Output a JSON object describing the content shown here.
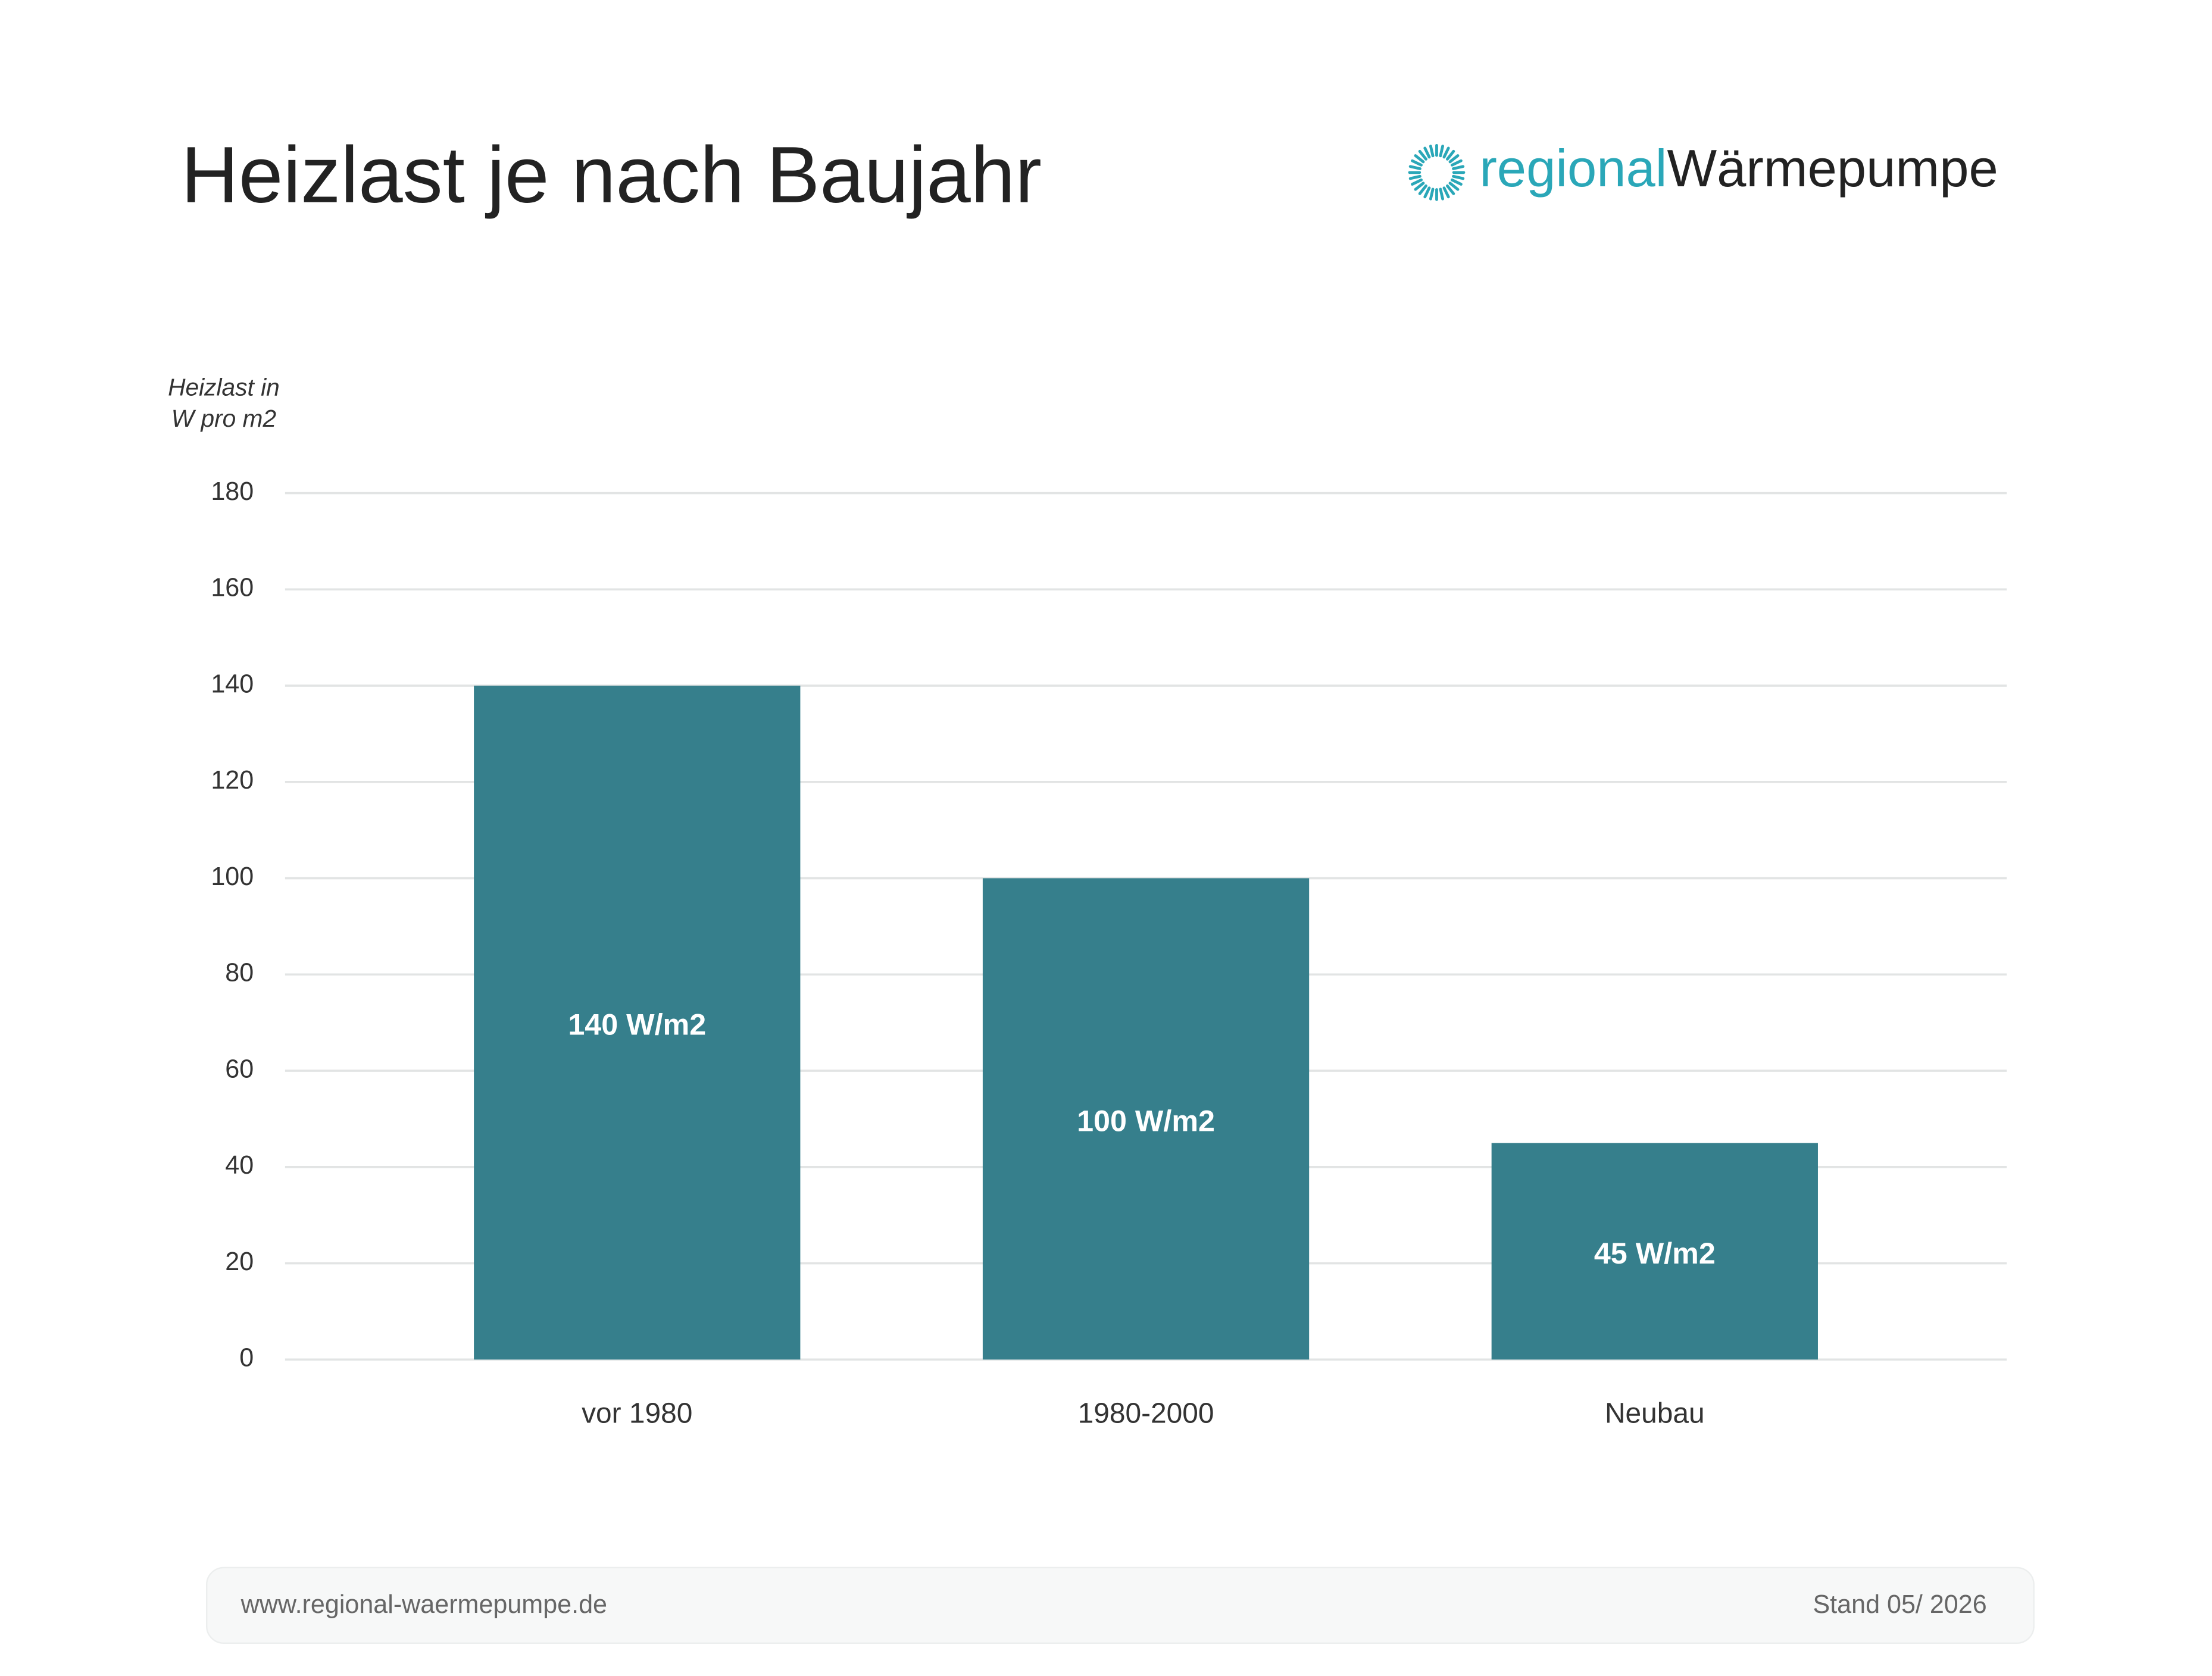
{
  "chart_data": {
    "type": "bar",
    "title": "Heizlast je nach Baujahr",
    "logo": {
      "part1": "regional",
      "part2": "Wärmepumpe"
    },
    "y_label": [
      "Heizlast in",
      "W pro m2"
    ],
    "categories": [
      "vor 1980",
      "1980-2000",
      "Neubau"
    ],
    "values": [
      140,
      100,
      45
    ],
    "value_labels": [
      "140 W/m2",
      "100 W/m2",
      "45 W/m2"
    ],
    "color": "#367f8c",
    "ylim": [
      0,
      180
    ],
    "yticks": [
      0,
      20,
      40,
      60,
      80,
      100,
      120,
      140,
      160,
      180
    ],
    "grid": true,
    "footer": {
      "left": "www.regional-waermepumpe.de",
      "right": "Stand 05/ 2026"
    }
  }
}
